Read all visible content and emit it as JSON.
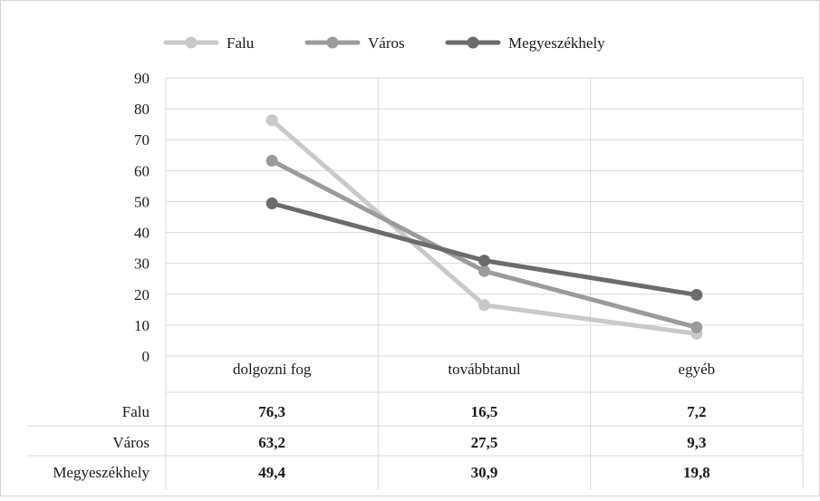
{
  "chart_data": {
    "type": "line",
    "title": "",
    "xlabel": "",
    "ylabel": "",
    "categories": [
      "dolgozni fog",
      "továbbtanul",
      "egyéb"
    ],
    "ylim": [
      0,
      90
    ],
    "yticks": [
      "0",
      "10",
      "20",
      "30",
      "40",
      "50",
      "60",
      "70",
      "80",
      "90"
    ],
    "grid": true,
    "legend_position": "top",
    "series": [
      {
        "name": "Falu",
        "values": [
          76.3,
          16.5,
          7.2
        ],
        "labels": [
          "76,3",
          "16,5",
          "7,2"
        ],
        "color": "#c9c9c9"
      },
      {
        "name": "Város",
        "values": [
          63.2,
          27.5,
          9.3
        ],
        "labels": [
          "63,2",
          "27,5",
          "9,3"
        ],
        "color": "#9b9b9b"
      },
      {
        "name": "Megyeszékhely",
        "values": [
          49.4,
          30.9,
          19.8
        ],
        "labels": [
          "49,4",
          "30,9",
          "19,8"
        ],
        "color": "#6b6b6b"
      }
    ],
    "data_table": true
  }
}
